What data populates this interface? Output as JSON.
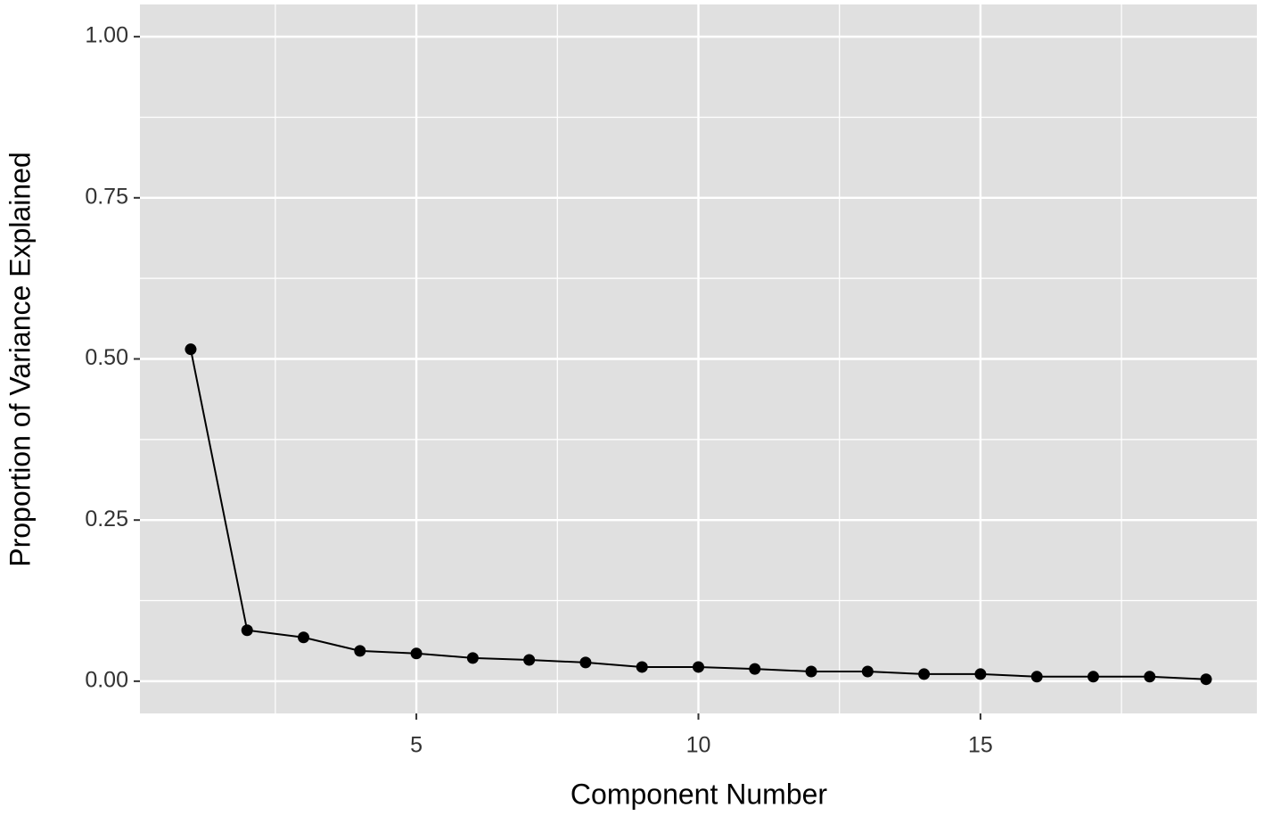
{
  "chart_data": {
    "type": "line",
    "x_label": "Component Number",
    "y_label": "Proportion of Variance Explained",
    "x": [
      1,
      2,
      3,
      4,
      5,
      6,
      7,
      8,
      9,
      10,
      11,
      12,
      13,
      14,
      15,
      16,
      17,
      18,
      19
    ],
    "series": [
      {
        "color": "#000000",
        "values": [
          0.515,
          0.079,
          0.068,
          0.047,
          0.043,
          0.036,
          0.033,
          0.029,
          0.022,
          0.022,
          0.019,
          0.015,
          0.015,
          0.011,
          0.011,
          0.007,
          0.007,
          0.007,
          0.003
        ]
      }
    ],
    "xlim": [
      0.1,
      19.9
    ],
    "ylim": [
      -0.05,
      1.05
    ],
    "xticks": [
      5,
      10,
      15
    ],
    "yticks": [
      {
        "value": 0,
        "label": "0.00"
      },
      {
        "value": 0.25,
        "label": "0.25"
      },
      {
        "value": 0.5,
        "label": "0.50"
      },
      {
        "value": 0.75,
        "label": "0.75"
      },
      {
        "value": 1,
        "label": "1.00"
      }
    ],
    "xminorticks": [
      2.5,
      7.5,
      12.5,
      17.5
    ],
    "yminorticks": [
      0.125,
      0.375,
      0.625,
      0.875
    ],
    "grid": true,
    "panel_color": "#e0e0e0"
  }
}
